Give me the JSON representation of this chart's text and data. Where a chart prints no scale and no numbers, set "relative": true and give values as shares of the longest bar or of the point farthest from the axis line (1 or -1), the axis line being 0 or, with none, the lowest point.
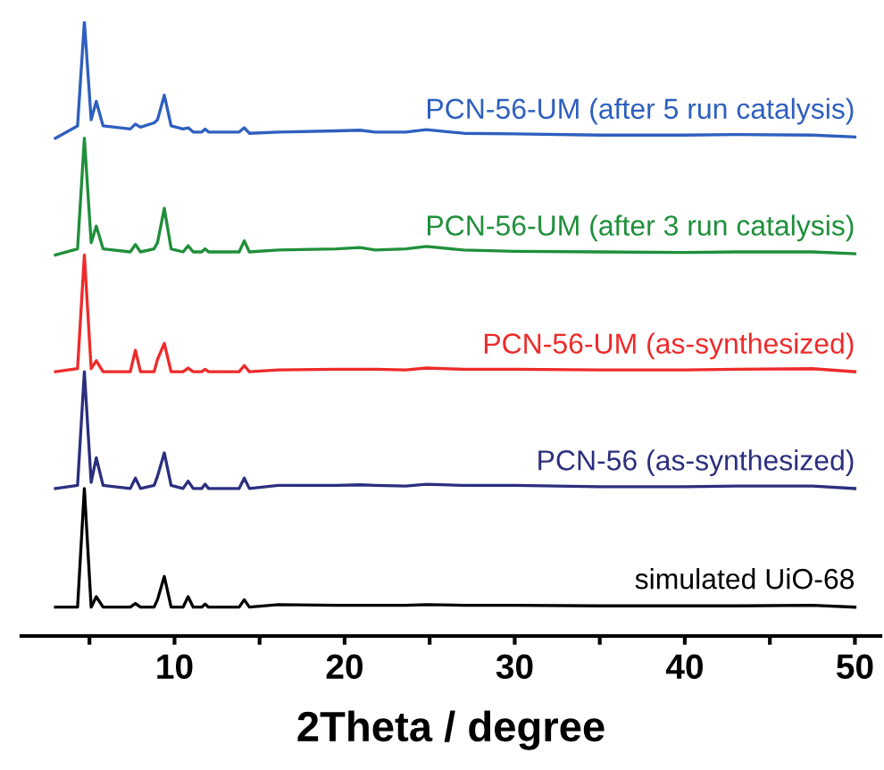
{
  "chart_data": {
    "type": "line",
    "relative": true,
    "xlabel": "2Theta / degree",
    "tick_labels": "x",
    "grid": false,
    "legend": false,
    "marker": "none",
    "line_style": "solid",
    "xlim": [
      1,
      51.5
    ],
    "xticks": [
      {
        "value": 5,
        "label": null
      },
      10,
      {
        "value": 15,
        "label": null
      },
      20,
      {
        "value": 25,
        "label": null
      },
      30,
      {
        "value": 35,
        "label": null
      },
      40,
      {
        "value": 45,
        "label": null
      },
      50
    ],
    "x": [
      3.0,
      4.3,
      4.7,
      5.1,
      5.4,
      5.8,
      7.4,
      7.7,
      8.0,
      8.8,
      9.0,
      9.4,
      9.8,
      10.5,
      10.8,
      11.1,
      11.6,
      11.8,
      12.0,
      13.8,
      14.1,
      14.4,
      16.1,
      19.5,
      20.9,
      21.8,
      23.6,
      24.8,
      27.0,
      30.0,
      35.0,
      40.0,
      43.0,
      47.5,
      50.0
    ],
    "series": [
      {
        "name": "simulated UiO-68",
        "color": "#000000",
        "values": [
          0.047,
          0.047,
          0.24,
          0.047,
          0.064,
          0.047,
          0.047,
          0.053,
          0.047,
          0.047,
          0.059,
          0.097,
          0.047,
          0.047,
          0.064,
          0.047,
          0.047,
          0.052,
          0.047,
          0.047,
          0.059,
          0.047,
          0.051,
          0.05,
          0.05,
          0.05,
          0.05,
          0.051,
          0.05,
          0.05,
          0.049,
          0.049,
          0.049,
          0.05,
          0.047
        ]
      },
      {
        "name": "PCN-56 (as-synthesized)",
        "color": "#2b2f7e",
        "values": [
          0.24,
          0.245,
          0.43,
          0.25,
          0.29,
          0.245,
          0.24,
          0.257,
          0.24,
          0.245,
          0.26,
          0.298,
          0.245,
          0.24,
          0.252,
          0.24,
          0.24,
          0.247,
          0.24,
          0.24,
          0.257,
          0.24,
          0.245,
          0.245,
          0.246,
          0.245,
          0.244,
          0.247,
          0.245,
          0.245,
          0.243,
          0.243,
          0.244,
          0.244,
          0.24
        ]
      },
      {
        "name": "PCN-56-UM (as-synthesized)",
        "color": "#ee2a2a",
        "values": [
          0.43,
          0.435,
          0.62,
          0.435,
          0.448,
          0.43,
          0.43,
          0.465,
          0.43,
          0.43,
          0.45,
          0.476,
          0.43,
          0.43,
          0.436,
          0.43,
          0.43,
          0.434,
          0.43,
          0.43,
          0.44,
          0.43,
          0.433,
          0.434,
          0.434,
          0.434,
          0.433,
          0.436,
          0.434,
          0.434,
          0.433,
          0.433,
          0.434,
          0.435,
          0.43
        ]
      },
      {
        "name": "PCN-56-UM (after 3 run catalysis)",
        "color": "#1f8f3a",
        "values": [
          0.62,
          0.63,
          0.81,
          0.64,
          0.667,
          0.63,
          0.625,
          0.637,
          0.625,
          0.63,
          0.64,
          0.696,
          0.63,
          0.625,
          0.635,
          0.625,
          0.625,
          0.63,
          0.625,
          0.625,
          0.643,
          0.625,
          0.628,
          0.63,
          0.632,
          0.628,
          0.63,
          0.634,
          0.628,
          0.626,
          0.625,
          0.624,
          0.625,
          0.625,
          0.622
        ]
      },
      {
        "name": "PCN-56-UM (after 5 run catalysis)",
        "color": "#2e5fbf",
        "values": [
          0.81,
          0.83,
          1.0,
          0.84,
          0.87,
          0.83,
          0.825,
          0.833,
          0.828,
          0.835,
          0.84,
          0.88,
          0.83,
          0.825,
          0.827,
          0.82,
          0.82,
          0.825,
          0.82,
          0.82,
          0.827,
          0.818,
          0.82,
          0.822,
          0.823,
          0.82,
          0.82,
          0.824,
          0.818,
          0.817,
          0.815,
          0.815,
          0.816,
          0.815,
          0.812
        ]
      }
    ]
  }
}
